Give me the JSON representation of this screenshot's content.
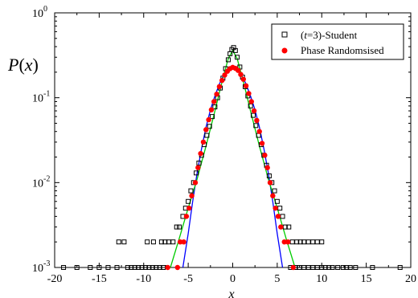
{
  "chart_data": {
    "type": "scatter",
    "title": "",
    "xlabel": "x",
    "ylabel": "P(x)",
    "xlim": [
      -20,
      20
    ],
    "ylim": [
      0.001,
      1
    ],
    "yscale": "log",
    "x_ticks": [
      -20,
      -15,
      -10,
      -5,
      0,
      5,
      10,
      15,
      20
    ],
    "x_tick_labels": [
      "-20",
      "-15",
      "-10",
      "-5",
      "0",
      "5",
      "10",
      "15",
      "20"
    ],
    "y_ticks": [
      {
        "value": 1,
        "base": "10",
        "exp": "0"
      },
      {
        "value": 0.1,
        "base": "10",
        "exp": "-1"
      },
      {
        "value": 0.01,
        "base": "10",
        "exp": "-2"
      },
      {
        "value": 0.001,
        "base": "10",
        "exp": "-3"
      }
    ],
    "grid": false,
    "legend": {
      "position": "top-right",
      "entries": [
        {
          "marker": "open-square",
          "color": "#000000",
          "label_italic": "t",
          "label_rest": "=3)-Student",
          "label_prefix": "("
        },
        {
          "marker": "filled-circle",
          "color": "#ff0000",
          "label": "Phase Randomsised"
        }
      ]
    },
    "series": [
      {
        "name": "(t=3)-Student",
        "marker": "open-square",
        "color": "#000000",
        "points": [
          [
            -19,
            0.001
          ],
          [
            -17.5,
            0.001
          ],
          [
            -16,
            0.001
          ],
          [
            -15,
            0.001
          ],
          [
            -14,
            0.001
          ],
          [
            -13,
            0.001
          ],
          [
            -11.8,
            0.001
          ],
          [
            -11.4,
            0.001
          ],
          [
            -11.0,
            0.001
          ],
          [
            -10.6,
            0.001
          ],
          [
            -10.2,
            0.001
          ],
          [
            -9.8,
            0.001
          ],
          [
            -9.4,
            0.001
          ],
          [
            -9.0,
            0.001
          ],
          [
            -8.6,
            0.001
          ],
          [
            -8.2,
            0.001
          ],
          [
            -7.8,
            0.001
          ],
          [
            -12.8,
            0.002
          ],
          [
            -12.2,
            0.002
          ],
          [
            -9.6,
            0.002
          ],
          [
            -8.9,
            0.002
          ],
          [
            -8.0,
            0.002
          ],
          [
            -7.6,
            0.002
          ],
          [
            -7.2,
            0.002
          ],
          [
            -6.7,
            0.002
          ],
          [
            -6.3,
            0.003
          ],
          [
            -6.0,
            0.003
          ],
          [
            -5.6,
            0.004
          ],
          [
            -5.3,
            0.005
          ],
          [
            -5.0,
            0.006
          ],
          [
            -4.7,
            0.008
          ],
          [
            -4.4,
            0.01
          ],
          [
            -4.1,
            0.013
          ],
          [
            -3.8,
            0.017
          ],
          [
            -3.5,
            0.021
          ],
          [
            -3.2,
            0.028
          ],
          [
            -2.9,
            0.036
          ],
          [
            -2.6,
            0.046
          ],
          [
            -2.3,
            0.06
          ],
          [
            -2.0,
            0.078
          ],
          [
            -1.7,
            0.1
          ],
          [
            -1.4,
            0.13
          ],
          [
            -1.1,
            0.17
          ],
          [
            -0.8,
            0.22
          ],
          [
            -0.5,
            0.28
          ],
          [
            -0.3,
            0.33
          ],
          [
            -0.1,
            0.37
          ],
          [
            0.1,
            0.39
          ],
          [
            0.3,
            0.36
          ],
          [
            0.5,
            0.3
          ],
          [
            0.8,
            0.23
          ],
          [
            1.1,
            0.175
          ],
          [
            1.4,
            0.135
          ],
          [
            1.7,
            0.105
          ],
          [
            2.0,
            0.08
          ],
          [
            2.3,
            0.062
          ],
          [
            2.6,
            0.047
          ],
          [
            2.9,
            0.036
          ],
          [
            3.2,
            0.028
          ],
          [
            3.5,
            0.021
          ],
          [
            3.8,
            0.016
          ],
          [
            4.1,
            0.012
          ],
          [
            4.4,
            0.01
          ],
          [
            4.7,
            0.008
          ],
          [
            5.0,
            0.006
          ],
          [
            5.3,
            0.005
          ],
          [
            5.6,
            0.004
          ],
          [
            5.9,
            0.003
          ],
          [
            6.3,
            0.003
          ],
          [
            6.7,
            0.002
          ],
          [
            7.2,
            0.002
          ],
          [
            7.6,
            0.002
          ],
          [
            8.0,
            0.002
          ],
          [
            8.5,
            0.002
          ],
          [
            9.0,
            0.002
          ],
          [
            9.5,
            0.002
          ],
          [
            10.0,
            0.002
          ],
          [
            6.5,
            0.001
          ],
          [
            7.0,
            0.001
          ],
          [
            7.5,
            0.001
          ],
          [
            8.0,
            0.001
          ],
          [
            8.5,
            0.001
          ],
          [
            9.0,
            0.001
          ],
          [
            9.5,
            0.001
          ],
          [
            10.0,
            0.001
          ],
          [
            10.4,
            0.001
          ],
          [
            10.8,
            0.001
          ],
          [
            11.2,
            0.001
          ],
          [
            11.8,
            0.001
          ],
          [
            12.4,
            0.001
          ],
          [
            12.8,
            0.001
          ],
          [
            13.2,
            0.001
          ],
          [
            13.8,
            0.001
          ],
          [
            15.7,
            0.001
          ],
          [
            18.8,
            0.001
          ]
        ]
      },
      {
        "name": "Phase Randomsised",
        "marker": "filled-circle",
        "color": "#ff0000",
        "points": [
          [
            -7.3,
            0.001
          ],
          [
            -6.2,
            0.001
          ],
          [
            -5.9,
            0.002
          ],
          [
            -5.5,
            0.002
          ],
          [
            -5.2,
            0.004
          ],
          [
            -4.9,
            0.005
          ],
          [
            -4.6,
            0.007
          ],
          [
            -4.2,
            0.01
          ],
          [
            -3.9,
            0.015
          ],
          [
            -3.6,
            0.022
          ],
          [
            -3.3,
            0.03
          ],
          [
            -3.0,
            0.042
          ],
          [
            -2.7,
            0.055
          ],
          [
            -2.4,
            0.072
          ],
          [
            -2.1,
            0.09
          ],
          [
            -1.8,
            0.11
          ],
          [
            -1.5,
            0.135
          ],
          [
            -1.2,
            0.16
          ],
          [
            -0.9,
            0.185
          ],
          [
            -0.6,
            0.205
          ],
          [
            -0.3,
            0.22
          ],
          [
            0.0,
            0.228
          ],
          [
            0.3,
            0.222
          ],
          [
            0.6,
            0.21
          ],
          [
            0.9,
            0.188
          ],
          [
            1.2,
            0.165
          ],
          [
            1.5,
            0.138
          ],
          [
            1.8,
            0.112
          ],
          [
            2.1,
            0.09
          ],
          [
            2.4,
            0.07
          ],
          [
            2.7,
            0.054
          ],
          [
            3.0,
            0.04
          ],
          [
            3.3,
            0.029
          ],
          [
            3.6,
            0.021
          ],
          [
            3.9,
            0.015
          ],
          [
            4.2,
            0.01
          ],
          [
            4.5,
            0.007
          ],
          [
            4.8,
            0.005
          ],
          [
            5.1,
            0.004
          ],
          [
            5.4,
            0.003
          ],
          [
            5.8,
            0.002
          ],
          [
            6.2,
            0.002
          ],
          [
            6.8,
            0.001
          ]
        ]
      }
    ],
    "fit_lines": [
      {
        "name": "gaussian-fit",
        "color": "#0000ff",
        "points": [
          [
            -5.6,
            0.001
          ],
          [
            -5.0,
            0.0025
          ],
          [
            -4.5,
            0.006
          ],
          [
            -4.0,
            0.013
          ],
          [
            -3.5,
            0.025
          ],
          [
            -3.0,
            0.045
          ],
          [
            -2.5,
            0.072
          ],
          [
            -2.0,
            0.105
          ],
          [
            -1.5,
            0.145
          ],
          [
            -1.0,
            0.185
          ],
          [
            -0.5,
            0.212
          ],
          [
            0.0,
            0.225
          ],
          [
            0.5,
            0.212
          ],
          [
            1.0,
            0.185
          ],
          [
            1.5,
            0.145
          ],
          [
            2.0,
            0.105
          ],
          [
            2.5,
            0.072
          ],
          [
            3.0,
            0.045
          ],
          [
            3.5,
            0.025
          ],
          [
            4.0,
            0.013
          ],
          [
            4.5,
            0.006
          ],
          [
            5.0,
            0.0025
          ],
          [
            5.6,
            0.001
          ]
        ]
      },
      {
        "name": "student-fit",
        "color": "#00cc00",
        "points": [
          [
            -7.0,
            0.001
          ],
          [
            -6.0,
            0.0022
          ],
          [
            -5.0,
            0.005
          ],
          [
            -4.0,
            0.011
          ],
          [
            -3.0,
            0.027
          ],
          [
            -2.0,
            0.07
          ],
          [
            -1.5,
            0.115
          ],
          [
            -1.0,
            0.185
          ],
          [
            -0.5,
            0.29
          ],
          [
            0.0,
            0.36
          ],
          [
            0.5,
            0.29
          ],
          [
            1.0,
            0.185
          ],
          [
            1.5,
            0.115
          ],
          [
            2.0,
            0.07
          ],
          [
            3.0,
            0.027
          ],
          [
            4.0,
            0.011
          ],
          [
            5.0,
            0.005
          ],
          [
            6.0,
            0.0022
          ],
          [
            7.0,
            0.001
          ]
        ]
      }
    ]
  }
}
